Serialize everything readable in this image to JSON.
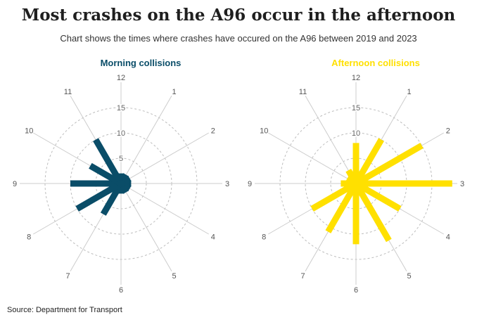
{
  "title": "Most crashes on the A96 occur in the afternoon",
  "subtitle": "Chart shows the times where crashes have occured on the A96 between 2019 and 2023",
  "source": "Source: Department for Transport",
  "chart_data": [
    {
      "type": "radial-bar",
      "title": "Morning collisions",
      "color": "#0a4d68",
      "categories": [
        "12",
        "1",
        "2",
        "3",
        "4",
        "5",
        "6",
        "7",
        "8",
        "9",
        "10",
        "11"
      ],
      "values": [
        2,
        2,
        2,
        2,
        2,
        2,
        2,
        7,
        10,
        10,
        7,
        10
      ],
      "radial_ticks": [
        5,
        10,
        15
      ],
      "rmax": 20,
      "grid": "dashed"
    },
    {
      "type": "radial-bar",
      "title": "Afternoon collisions",
      "color": "#ffe000",
      "categories": [
        "12",
        "1",
        "2",
        "3",
        "4",
        "5",
        "6",
        "7",
        "8",
        "9",
        "10",
        "11"
      ],
      "values": [
        8,
        10,
        15,
        19,
        10,
        13,
        12,
        11,
        10,
        3,
        2,
        3
      ],
      "radial_ticks": [
        5,
        10,
        15
      ],
      "rmax": 20,
      "grid": "dashed"
    }
  ]
}
